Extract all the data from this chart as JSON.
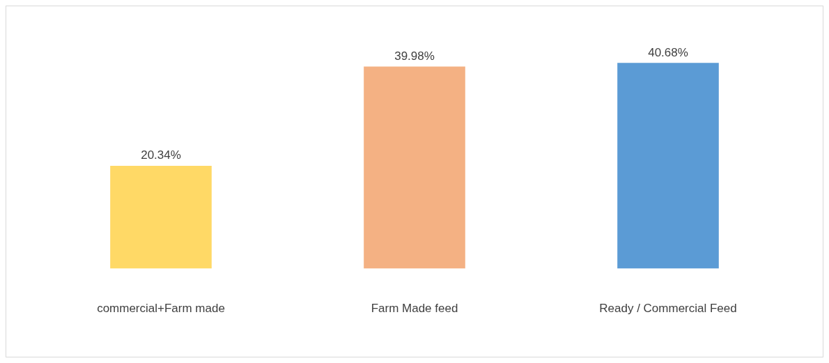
{
  "chart_data": {
    "type": "bar",
    "categories": [
      "commercial+Farm made",
      "Farm Made feed",
      "Ready / Commercial Feed"
    ],
    "values": [
      20.34,
      39.98,
      40.68
    ],
    "colors": [
      "#ffd966",
      "#f4b183",
      "#5b9bd5"
    ],
    "value_labels": [
      "20.34%",
      "39.98%",
      "40.68%"
    ],
    "grid": false,
    "legend": false
  }
}
